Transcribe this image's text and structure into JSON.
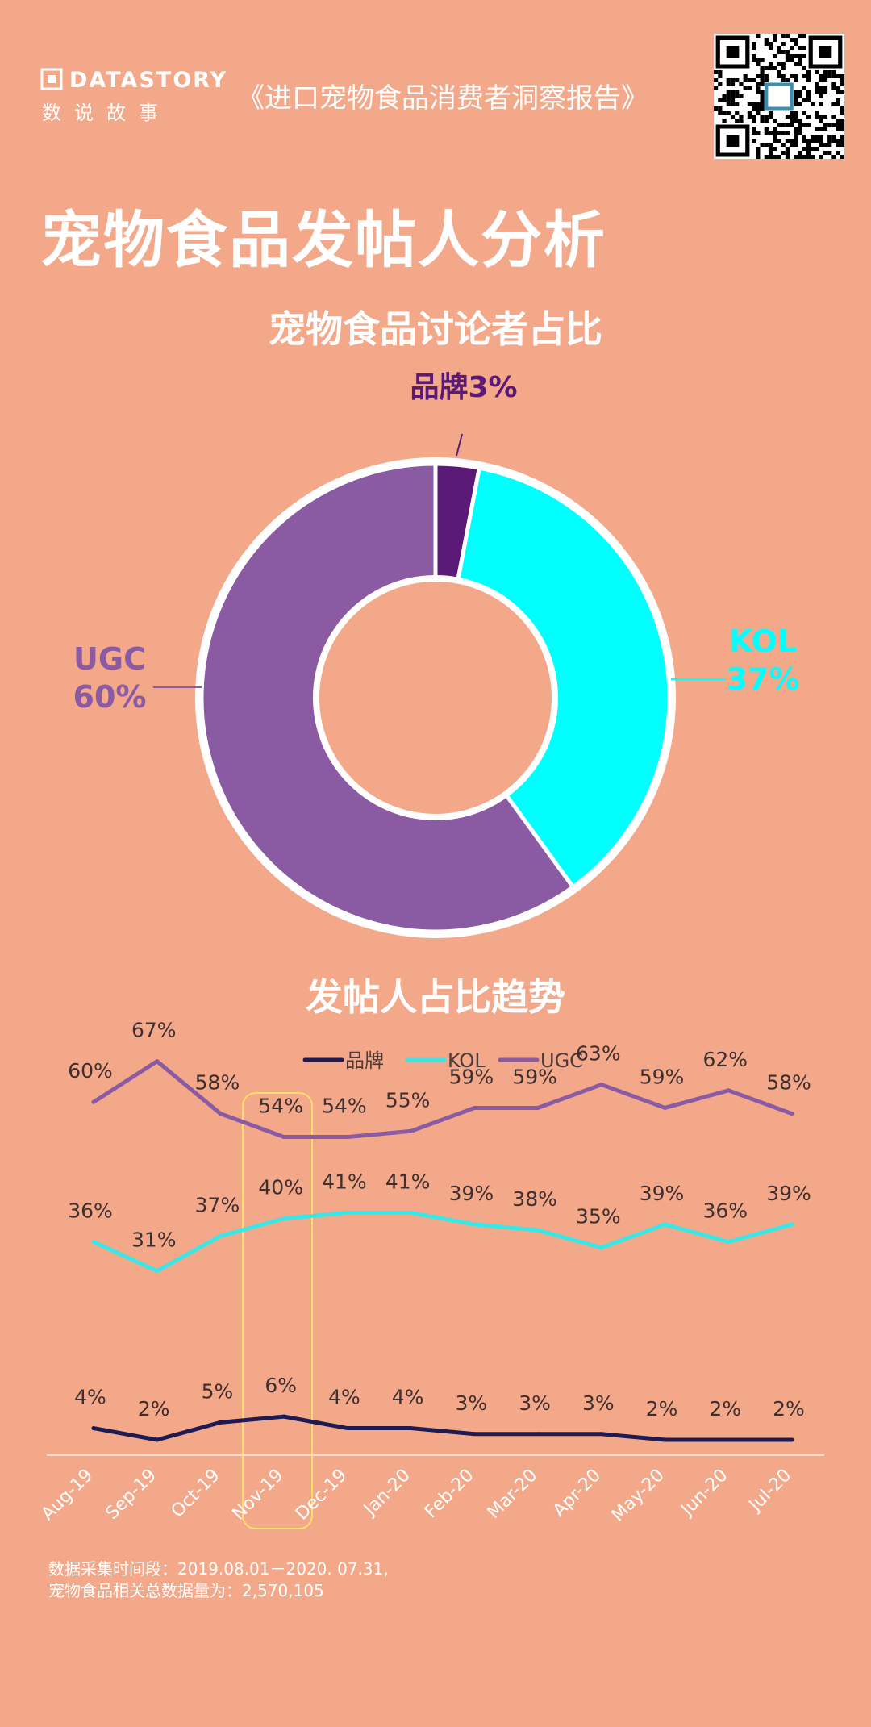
{
  "header": {
    "logo_en": "DATASTORY",
    "logo_zh": "数说故事",
    "report_name": "《进口宠物食品消费者洞察报告》"
  },
  "page_title": "宠物食品发帖人分析",
  "colors": {
    "background": "#f4a88a",
    "brand": "#5c1a78",
    "kol": "#00ffff",
    "ugc": "#8a5aa3",
    "brand_line": "#1e1a52",
    "kol_line": "#39e8e6",
    "ugc_line": "#8a5aa3",
    "highlight": "#ffe06a"
  },
  "chart_data": [
    {
      "type": "pie",
      "title": "宠物食品讨论者占比",
      "slices": [
        {
          "name": "品牌",
          "value": 3,
          "label": "品牌3%"
        },
        {
          "name": "KOL",
          "value": 37,
          "label_name": "KOL",
          "label_value": "37%"
        },
        {
          "name": "UGC",
          "value": 60,
          "label_name": "UGC",
          "label_value": "60%"
        }
      ],
      "donut": true
    },
    {
      "type": "line",
      "title": "发帖人占比趋势",
      "categories": [
        "Aug-19",
        "Sep-19",
        "Oct-19",
        "Nov-19",
        "Dec-19",
        "Jan-20",
        "Feb-20",
        "Mar-20",
        "Apr-20",
        "May-20",
        "Jun-20",
        "Jul-20"
      ],
      "series": [
        {
          "name": "品牌",
          "values": [
            4,
            2,
            5,
            6,
            4,
            4,
            3,
            3,
            3,
            2,
            2,
            2
          ]
        },
        {
          "name": "KOL",
          "values": [
            36,
            31,
            37,
            40,
            41,
            41,
            39,
            38,
            35,
            39,
            36,
            39
          ]
        },
        {
          "name": "UGC",
          "values": [
            60,
            67,
            58,
            54,
            54,
            55,
            59,
            59,
            63,
            59,
            62,
            58
          ]
        }
      ],
      "highlight_category": "Nov-19",
      "legend": "top-center",
      "grid": false
    }
  ],
  "footnote": {
    "line1": "数据采集时间段：2019.08.01－2020. 07.31,",
    "line2": "宠物食品相关总数据量为：2,570,105"
  }
}
